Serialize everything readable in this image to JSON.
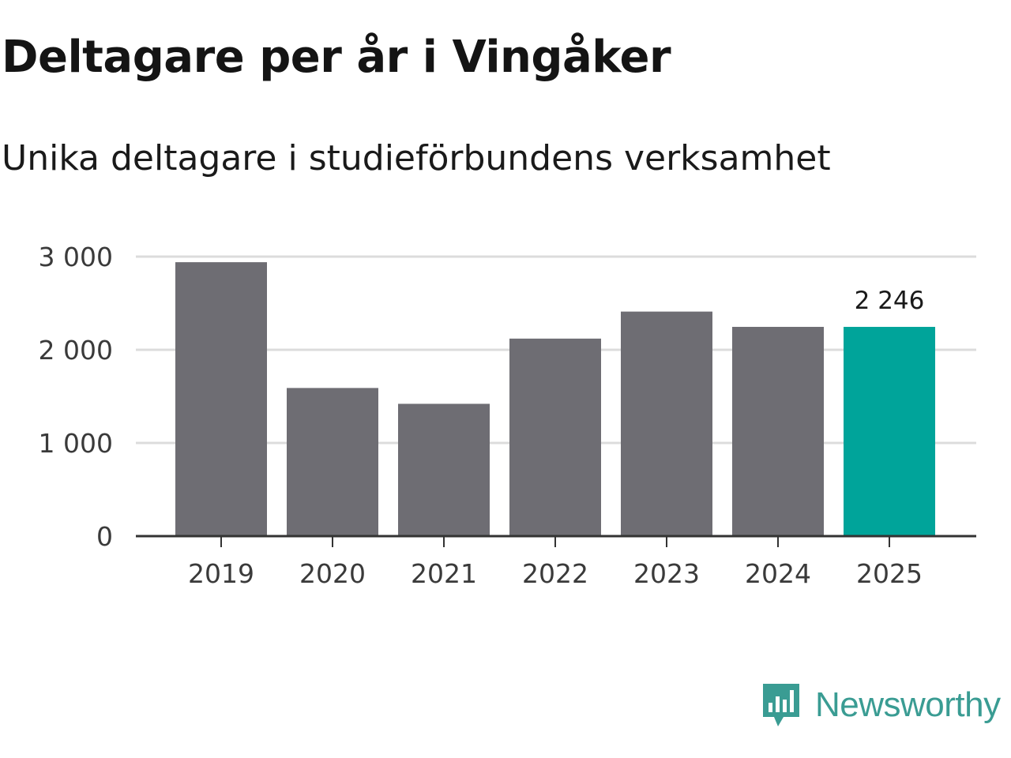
{
  "chart_data": {
    "type": "bar",
    "title": "Deltagare per år i Vingåker",
    "subtitle": "Unika deltagare i studieförbundens verksamhet",
    "categories": [
      "2019",
      "2020",
      "2021",
      "2022",
      "2023",
      "2024",
      "2025"
    ],
    "values": [
      2940,
      1590,
      1420,
      2120,
      2410,
      2246,
      2246
    ],
    "ylim": [
      0,
      3000
    ],
    "yticks": [
      0,
      1000,
      2000,
      3000
    ],
    "ytick_labels": [
      "0",
      "1 000",
      "2 000",
      "3 000"
    ],
    "highlight_index": 6,
    "annotations": [
      {
        "category": "2025",
        "label": "2 246"
      }
    ],
    "grid": true,
    "xlabel": "",
    "ylabel": "",
    "colors": {
      "bar": "#6e6d73",
      "highlight": "#00a49a",
      "grid": "#dcdcdc",
      "axis": "#333333"
    }
  },
  "branding": {
    "logo_text": "Newsworthy",
    "logo_icon": "newsworthy-chart-bubble-icon",
    "logo_color": "#3a9c93"
  }
}
